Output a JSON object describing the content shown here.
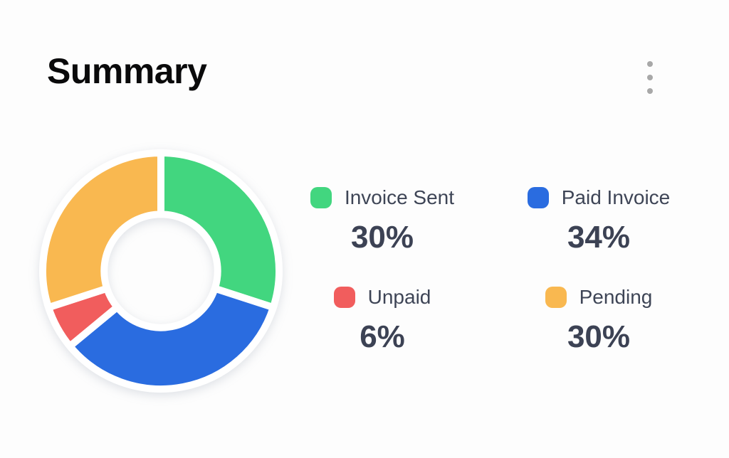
{
  "header": {
    "title": "Summary",
    "menu_icon": "kebab-menu-icon"
  },
  "chart_data": {
    "type": "pie",
    "variant": "donut",
    "title": "Summary",
    "categories": [
      "Invoice Sent",
      "Paid Invoice",
      "Unpaid",
      "Pending"
    ],
    "values": [
      30,
      34,
      6,
      30
    ],
    "unit": "%",
    "display_values": [
      "30%",
      "34%",
      "6%",
      "30%"
    ],
    "colors": [
      "#42d67f",
      "#2a6ce0",
      "#f15d5d",
      "#f9b850"
    ],
    "start_angle_deg": 0,
    "direction": "clockwise",
    "inner_radius_ratio": 0.48,
    "slice_border_color": "#ffffff",
    "slice_border_width": 10,
    "legend_position": "right"
  },
  "colors": {
    "background": "#fdfdfd",
    "title_text": "#0a0a0b",
    "legend_label_text": "#3e4556",
    "legend_value_text": "#3c4254",
    "menu_dots": "#a8a8a8"
  }
}
